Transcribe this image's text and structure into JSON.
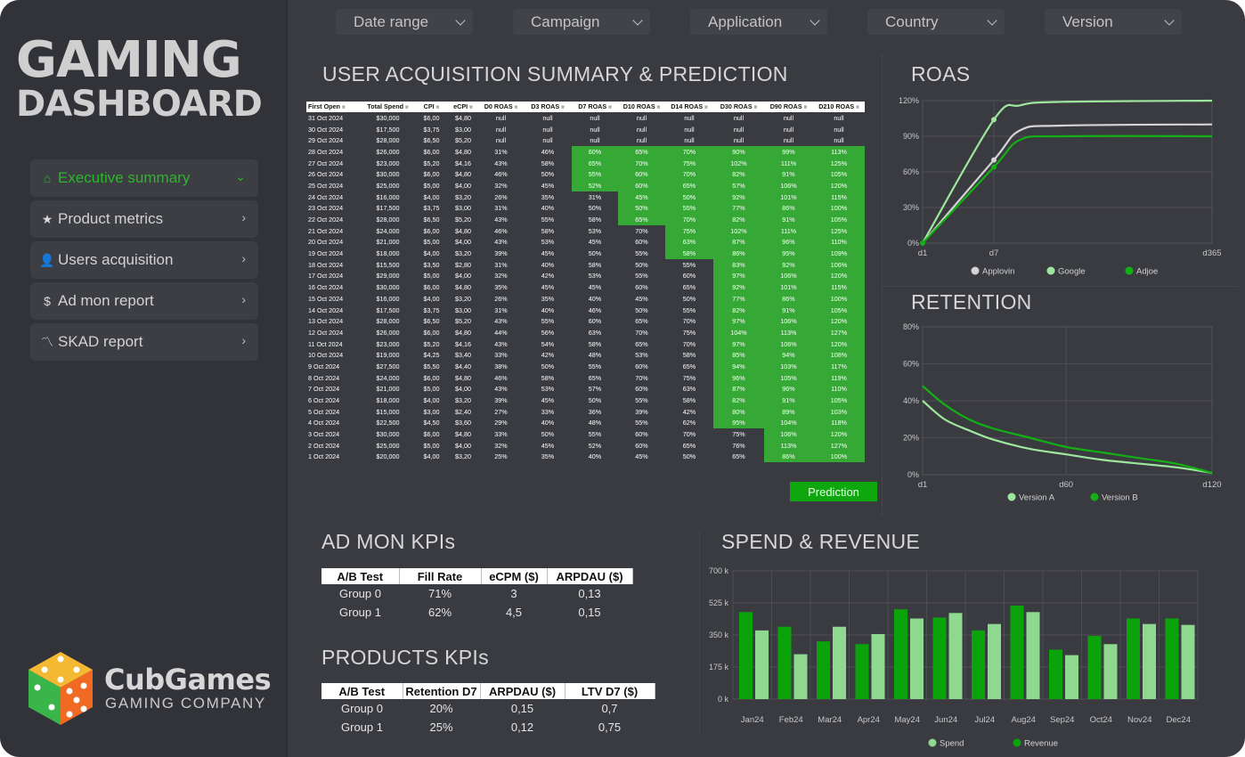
{
  "brand": {
    "line1": "GAMING",
    "line2": "DASHBOARD",
    "company": "CubGames",
    "tagline": "GAMING COMPANY"
  },
  "nav": [
    {
      "label": "Executive summary",
      "icon": "home-icon",
      "glyph": "⌂",
      "chev": "⌄",
      "active": true
    },
    {
      "label": "Product metrics",
      "icon": "star-icon",
      "glyph": "★",
      "chev": "›",
      "active": false
    },
    {
      "label": "Users acquisition",
      "icon": "user-icon",
      "glyph": "👤",
      "chev": "›",
      "active": false
    },
    {
      "label": "Ad mon report",
      "icon": "dollar-icon",
      "glyph": "$",
      "chev": "›",
      "active": false
    },
    {
      "label": "SKAD report",
      "icon": "trend-icon",
      "glyph": "〽",
      "chev": "›",
      "active": false
    }
  ],
  "filters": [
    "Date range",
    "Campaign",
    "Application",
    "Country",
    "Version"
  ],
  "sections": {
    "ua": "USER ACQUISITION SUMMARY & PREDICTION",
    "roas": "ROAS",
    "retention": "RETENTION",
    "admon": "AD MON KPIs",
    "spend": "SPEND & REVENUE",
    "products": "PRODUCTS KPIs"
  },
  "ua_table": {
    "columns": [
      "First Open",
      "Total Spend",
      "CPI",
      "eCPI",
      "D0 ROAS",
      "D3 ROAS",
      "D7 ROAS",
      "D10 ROAS",
      "D14 ROAS",
      "D30 ROAS",
      "D90 ROAS",
      "D210 ROAS"
    ],
    "rows": [
      [
        "31 Oct 2024",
        "$30,000",
        "$6,00",
        "$4,80",
        "null",
        "null",
        "null",
        "null",
        "null",
        "null",
        "null",
        "null"
      ],
      [
        "30 Oct 2024",
        "$17,500",
        "$3,75",
        "$3,00",
        "null",
        "null",
        "null",
        "null",
        "null",
        "null",
        "null",
        "null"
      ],
      [
        "29 Oct 2024",
        "$28,000",
        "$6,50",
        "$5,20",
        "null",
        "null",
        "null",
        "null",
        "null",
        "null",
        "null",
        "null"
      ],
      [
        "28 Oct 2024",
        "$26,000",
        "$6,00",
        "$4,80",
        "31%",
        "46%",
        "60%",
        "65%",
        "70%",
        "90%",
        "99%",
        "113%"
      ],
      [
        "27 Oct 2024",
        "$23,000",
        "$5,20",
        "$4,16",
        "43%",
        "58%",
        "65%",
        "70%",
        "75%",
        "102%",
        "111%",
        "125%"
      ],
      [
        "26 Oct 2024",
        "$30,000",
        "$6,00",
        "$4,80",
        "46%",
        "50%",
        "55%",
        "60%",
        "70%",
        "82%",
        "91%",
        "105%"
      ],
      [
        "25 Oct 2024",
        "$25,000",
        "$5,00",
        "$4,00",
        "32%",
        "45%",
        "52%",
        "60%",
        "65%",
        "57%",
        "106%",
        "120%"
      ],
      [
        "24 Oct 2024",
        "$16,000",
        "$4,00",
        "$3,20",
        "26%",
        "35%",
        "31%",
        "45%",
        "50%",
        "92%",
        "101%",
        "115%"
      ],
      [
        "23 Oct 2024",
        "$17,500",
        "$3,75",
        "$3,00",
        "31%",
        "40%",
        "50%",
        "50%",
        "55%",
        "77%",
        "86%",
        "100%"
      ],
      [
        "22 Oct 2024",
        "$28,000",
        "$6,50",
        "$5,20",
        "43%",
        "55%",
        "58%",
        "65%",
        "70%",
        "82%",
        "91%",
        "105%"
      ],
      [
        "21 Oct 2024",
        "$24,000",
        "$6,00",
        "$4,80",
        "46%",
        "58%",
        "53%",
        "70%",
        "75%",
        "102%",
        "111%",
        "125%"
      ],
      [
        "20 Oct 2024",
        "$21,000",
        "$5,00",
        "$4,00",
        "43%",
        "53%",
        "45%",
        "60%",
        "63%",
        "87%",
        "96%",
        "110%"
      ],
      [
        "19 Oct 2024",
        "$18,000",
        "$4,00",
        "$3,20",
        "39%",
        "45%",
        "50%",
        "55%",
        "58%",
        "86%",
        "95%",
        "109%"
      ],
      [
        "18 Oct 2024",
        "$15,500",
        "$3,50",
        "$2,80",
        "31%",
        "40%",
        "58%",
        "50%",
        "55%",
        "83%",
        "92%",
        "106%"
      ],
      [
        "17 Oct 2024",
        "$29,000",
        "$5,00",
        "$4,00",
        "32%",
        "42%",
        "53%",
        "55%",
        "60%",
        "97%",
        "106%",
        "120%"
      ],
      [
        "16 Oct 2024",
        "$30,000",
        "$6,00",
        "$4,80",
        "35%",
        "45%",
        "45%",
        "60%",
        "65%",
        "92%",
        "101%",
        "115%"
      ],
      [
        "15 Oct 2024",
        "$16,000",
        "$4,00",
        "$3,20",
        "26%",
        "35%",
        "40%",
        "45%",
        "50%",
        "77%",
        "86%",
        "100%"
      ],
      [
        "14 Oct 2024",
        "$17,500",
        "$3,75",
        "$3,00",
        "31%",
        "40%",
        "46%",
        "50%",
        "55%",
        "82%",
        "91%",
        "105%"
      ],
      [
        "13 Oct 2024",
        "$28,000",
        "$6,50",
        "$5,20",
        "43%",
        "55%",
        "60%",
        "65%",
        "70%",
        "97%",
        "106%",
        "120%"
      ],
      [
        "12 Oct 2024",
        "$26,000",
        "$6,00",
        "$4,80",
        "44%",
        "56%",
        "63%",
        "70%",
        "75%",
        "104%",
        "113%",
        "127%"
      ],
      [
        "11 Oct 2024",
        "$23,000",
        "$5,20",
        "$4,16",
        "43%",
        "54%",
        "58%",
        "65%",
        "70%",
        "97%",
        "106%",
        "120%"
      ],
      [
        "10 Oct 2024",
        "$19,000",
        "$4,25",
        "$3,40",
        "33%",
        "42%",
        "48%",
        "53%",
        "58%",
        "85%",
        "94%",
        "108%"
      ],
      [
        "9 Oct 2024",
        "$27,500",
        "$5,50",
        "$4,40",
        "38%",
        "50%",
        "55%",
        "60%",
        "65%",
        "94%",
        "103%",
        "117%"
      ],
      [
        "8 Oct 2024",
        "$24,000",
        "$6,00",
        "$4,80",
        "46%",
        "58%",
        "65%",
        "70%",
        "75%",
        "96%",
        "105%",
        "119%"
      ],
      [
        "7 Oct 2024",
        "$21,000",
        "$5,00",
        "$4,00",
        "43%",
        "53%",
        "57%",
        "60%",
        "63%",
        "87%",
        "96%",
        "110%"
      ],
      [
        "6 Oct 2024",
        "$18,000",
        "$4,00",
        "$3,20",
        "39%",
        "45%",
        "50%",
        "55%",
        "58%",
        "82%",
        "91%",
        "105%"
      ],
      [
        "5 Oct 2024",
        "$15,000",
        "$3,00",
        "$2,40",
        "27%",
        "33%",
        "36%",
        "39%",
        "42%",
        "80%",
        "89%",
        "103%"
      ],
      [
        "4 Oct 2024",
        "$22,500",
        "$4,50",
        "$3,60",
        "29%",
        "40%",
        "48%",
        "55%",
        "62%",
        "95%",
        "104%",
        "118%"
      ],
      [
        "3 Oct 2024",
        "$30,000",
        "$6,00",
        "$4,80",
        "33%",
        "50%",
        "55%",
        "60%",
        "70%",
        "75%",
        "106%",
        "120%"
      ],
      [
        "2 Oct 2024",
        "$25,000",
        "$5,00",
        "$4,00",
        "32%",
        "45%",
        "52%",
        "60%",
        "65%",
        "76%",
        "113%",
        "127%"
      ],
      [
        "1 Oct 2024",
        "$20,000",
        "$4,00",
        "$3,20",
        "25%",
        "35%",
        "40%",
        "45%",
        "50%",
        "65%",
        "86%",
        "100%"
      ]
    ],
    "prediction_label": "Prediction"
  },
  "admon_kpi": {
    "columns": [
      "A/B Test",
      "Fill Rate",
      "eCPM ($)",
      "ARPDAU ($)"
    ],
    "rows": [
      [
        "Group 0",
        "71%",
        "3",
        "0,13"
      ],
      [
        "Group 1",
        "62%",
        "4,5",
        "0,15"
      ]
    ]
  },
  "products_kpi": {
    "columns": [
      "A/B Test",
      "Retention D7",
      "ARPDAU ($)",
      "LTV D7 ($)"
    ],
    "rows": [
      [
        "Group 0",
        "20%",
        "0,15",
        "0,7"
      ],
      [
        "Group 1",
        "25%",
        "0,12",
        "0,75"
      ]
    ]
  },
  "colors": {
    "spend": "#8fd88f",
    "revenue": "#0aa40a",
    "applovin": "#d4d4d4",
    "google": "#9ee69e",
    "adjoe": "#12b012",
    "version_a": "#9ee69e",
    "version_b": "#12b012"
  },
  "chart_data": [
    {
      "type": "line",
      "title": "ROAS",
      "x": [
        "d1",
        "d7",
        "d365"
      ],
      "y_ticks": [
        "0%",
        "30%",
        "60%",
        "90%",
        "120%"
      ],
      "ylim": [
        0,
        120
      ],
      "series": [
        {
          "name": "Applovin",
          "color": "#d4d4d4",
          "points": [
            [
              1,
              0
            ],
            [
              7,
              70
            ],
            [
              50,
              95
            ],
            [
              120,
              99
            ],
            [
              365,
              100
            ]
          ]
        },
        {
          "name": "Google",
          "color": "#9ee69e",
          "points": [
            [
              1,
              0
            ],
            [
              7,
              104
            ],
            [
              50,
              116
            ],
            [
              120,
              119
            ],
            [
              365,
              120
            ]
          ]
        },
        {
          "name": "Adjoe",
          "color": "#12b012",
          "points": [
            [
              1,
              0
            ],
            [
              7,
              64
            ],
            [
              50,
              87
            ],
            [
              120,
              90
            ],
            [
              365,
              90
            ]
          ]
        }
      ]
    },
    {
      "type": "line",
      "title": "RETENTION",
      "x": [
        "d1",
        "d60",
        "d120"
      ],
      "y_ticks": [
        "0%",
        "20%",
        "40%",
        "60%",
        "80%"
      ],
      "ylim": [
        0,
        80
      ],
      "series": [
        {
          "name": "Version A",
          "color": "#9ee69e",
          "points": [
            [
              1,
              40
            ],
            [
              10,
              30
            ],
            [
              20,
              24
            ],
            [
              30,
              19
            ],
            [
              45,
              14
            ],
            [
              60,
              11
            ],
            [
              75,
              8
            ],
            [
              90,
              6
            ],
            [
              105,
              4
            ],
            [
              120,
              1
            ]
          ]
        },
        {
          "name": "Version B",
          "color": "#12b012",
          "points": [
            [
              1,
              48
            ],
            [
              10,
              38
            ],
            [
              20,
              30
            ],
            [
              30,
              25
            ],
            [
              45,
              20
            ],
            [
              60,
              15
            ],
            [
              75,
              12
            ],
            [
              90,
              9
            ],
            [
              105,
              6
            ],
            [
              120,
              1
            ]
          ]
        }
      ]
    },
    {
      "type": "bar",
      "title": "SPEND & REVENUE",
      "categories": [
        "Jan24",
        "Feb24",
        "Mar24",
        "Apr24",
        "May24",
        "Jun24",
        "Jul24",
        "Aug24",
        "Sep24",
        "Oct24",
        "Nov24",
        "Dec24"
      ],
      "y_ticks": [
        "0 k",
        "175 k",
        "350 k",
        "525 k",
        "700 k"
      ],
      "ylim": [
        0,
        700
      ],
      "series": [
        {
          "name": "Revenue",
          "color": "#0aa40a",
          "values": [
            475,
            395,
            315,
            300,
            490,
            445,
            375,
            510,
            270,
            345,
            440,
            440
          ]
        },
        {
          "name": "Spend",
          "color": "#8fd88f",
          "values": [
            375,
            245,
            395,
            355,
            440,
            470,
            410,
            475,
            240,
            300,
            410,
            405
          ]
        }
      ]
    }
  ]
}
